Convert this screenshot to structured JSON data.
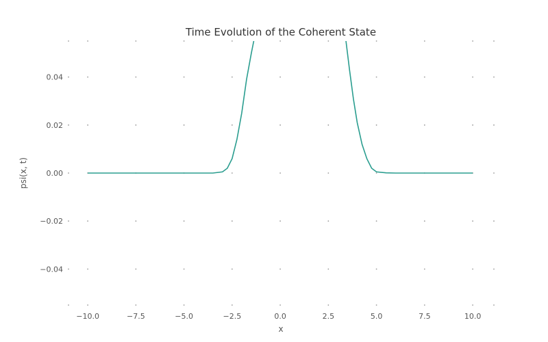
{
  "chart_data": {
    "type": "line",
    "title": "Time Evolution of the Coherent State",
    "xlabel": "x",
    "ylabel": "psi(x, t)",
    "xlim": [
      -11,
      11.1
    ],
    "ylim": [
      -0.055,
      0.055
    ],
    "x_ticks": [
      -10.0,
      -7.5,
      -5.0,
      -2.5,
      0.0,
      2.5,
      5.0,
      7.5,
      10.0
    ],
    "x_tick_labels": [
      "−10.0",
      "−7.5",
      "−5.0",
      "−2.5",
      "0.0",
      "2.5",
      "5.0",
      "7.5",
      "10.0"
    ],
    "y_ticks": [
      -0.04,
      -0.02,
      0.0,
      0.02,
      0.04
    ],
    "y_tick_labels": [
      "−0.04",
      "−0.02",
      "0.00",
      "0.02",
      "0.04"
    ],
    "grid": "dotted",
    "legend": "none",
    "series": [
      {
        "color": "#2a9d8f",
        "x": [
          -10.0,
          -4.0,
          -3.5,
          -3.0,
          -2.75,
          -2.5,
          -2.25,
          -2.0,
          -1.75,
          -1.5,
          -1.35,
          -1.25,
          3.3,
          3.4,
          3.6,
          3.8,
          4.0,
          4.25,
          4.5,
          4.75,
          5.0,
          5.5,
          6.0,
          10.0
        ],
        "y": [
          0.0,
          0.0,
          0.0,
          0.0005,
          0.002,
          0.006,
          0.014,
          0.025,
          0.039,
          0.05,
          0.056,
          0.06,
          0.06,
          0.056,
          0.043,
          0.031,
          0.021,
          0.012,
          0.006,
          0.002,
          0.0005,
          0.0001,
          0.0,
          0.0
        ]
      }
    ]
  }
}
